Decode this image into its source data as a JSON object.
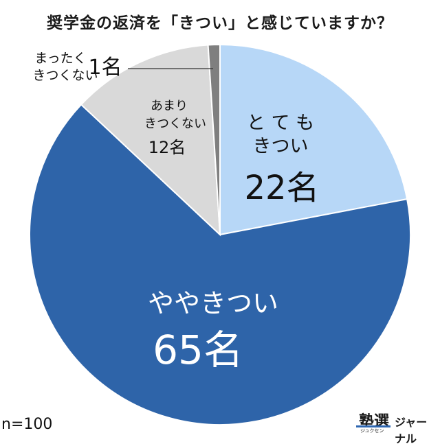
{
  "title": "奨学金の返済を「きつい」と感じていますか？",
  "sample_note": "n=100",
  "logo": {
    "main": "塾選",
    "sub": "ジュクセン",
    "journal": "ジャーナル"
  },
  "chart_data": {
    "type": "pie",
    "title": "奨学金の返済を「きつい」と感じていますか？",
    "unit": "名",
    "total": 100,
    "slices": [
      {
        "label": "とてもきつい",
        "label_lines": [
          "と て も",
          "きつい"
        ],
        "value": 22,
        "value_label": "22名",
        "color": "#b7d7f7"
      },
      {
        "label": "ややきつい",
        "label_lines": [
          "ややきつい"
        ],
        "value": 65,
        "value_label": "65名",
        "color": "#2e64a9"
      },
      {
        "label": "あまりきつくない",
        "label_lines": [
          "あまり",
          "きつくない"
        ],
        "value": 12,
        "value_label": "12名",
        "color": "#d9d9d9"
      },
      {
        "label": "まったくきつくない",
        "label_lines": [
          "まったく",
          "きつくない"
        ],
        "value": 1,
        "value_label": "1名",
        "color": "#7f7f7f"
      }
    ]
  }
}
